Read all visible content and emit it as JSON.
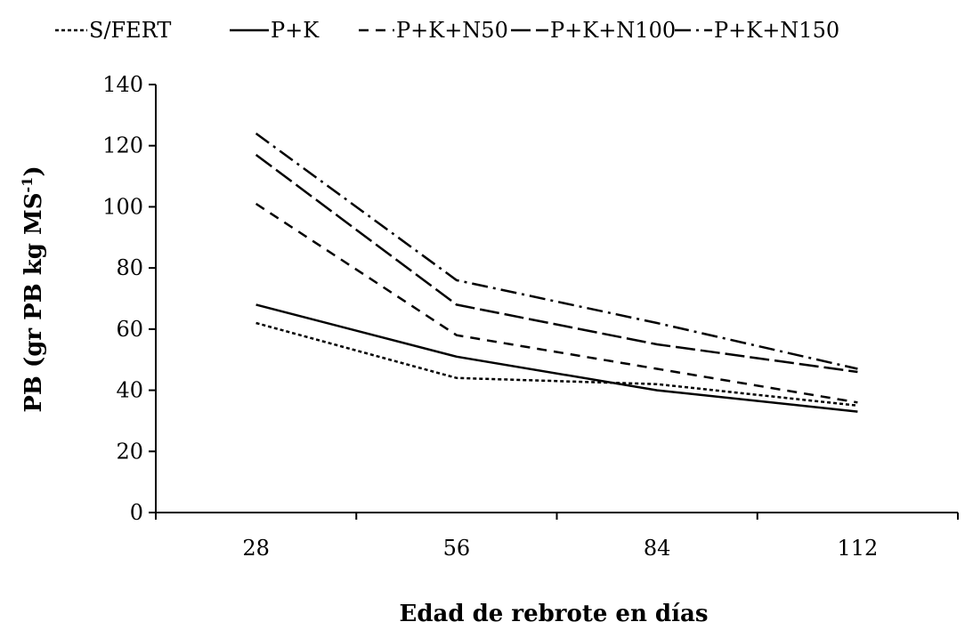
{
  "chart_data": {
    "type": "line",
    "title": "",
    "xlabel": "Edad de rebrote en días",
    "ylabel": "PB (gr PB kg MS",
    "ylabel_sup": "-1",
    "ylabel_close": ")",
    "categories": [
      "28",
      "56",
      "84",
      "112"
    ],
    "ylim": [
      0,
      140
    ],
    "yticks": [
      0,
      20,
      40,
      60,
      80,
      100,
      120,
      140
    ],
    "grid": false,
    "legend": "top",
    "series": [
      {
        "name": "S/FERT",
        "values": [
          62,
          44,
          42,
          35
        ],
        "dash": "4,3"
      },
      {
        "name": "P+K",
        "values": [
          68,
          51,
          40,
          33
        ],
        "dash": ""
      },
      {
        "name": "P+K+N50",
        "values": [
          101,
          58,
          47,
          36
        ],
        "dash": "11,8"
      },
      {
        "name": "P+K+N100",
        "values": [
          117,
          68,
          55,
          46
        ],
        "dash": "22,6"
      },
      {
        "name": "P+K+N150",
        "values": [
          124,
          76,
          62,
          47
        ],
        "dash": "18,6,3,6"
      }
    ]
  }
}
